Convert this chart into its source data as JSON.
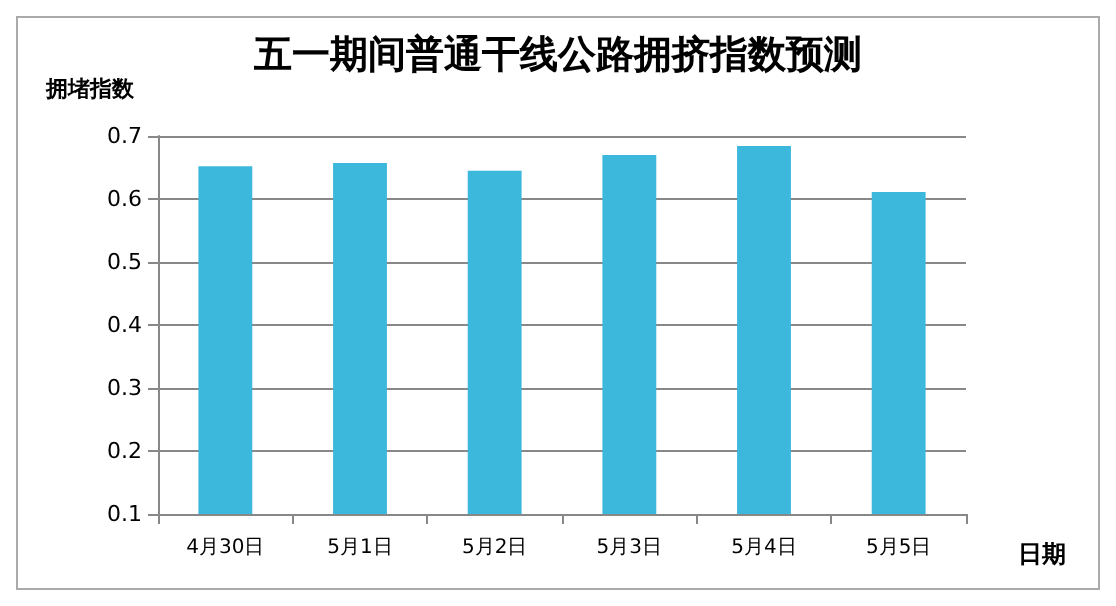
{
  "chart_data": {
    "type": "bar",
    "title": "五一期间普通干线公路拥挤指数预测",
    "xlabel": "日期",
    "ylabel": "拥堵指数",
    "categories": [
      "4月30日",
      "5月1日",
      "5月2日",
      "5月3日",
      "5月4日",
      "5月5日"
    ],
    "values": [
      0.652,
      0.657,
      0.645,
      0.67,
      0.684,
      0.611
    ],
    "color": "#3bb8dc",
    "ylim": [
      0.1,
      0.7
    ],
    "yticks": [
      0.1,
      0.2,
      0.3,
      0.4,
      0.5,
      0.6,
      0.7
    ],
    "grid": "y"
  }
}
